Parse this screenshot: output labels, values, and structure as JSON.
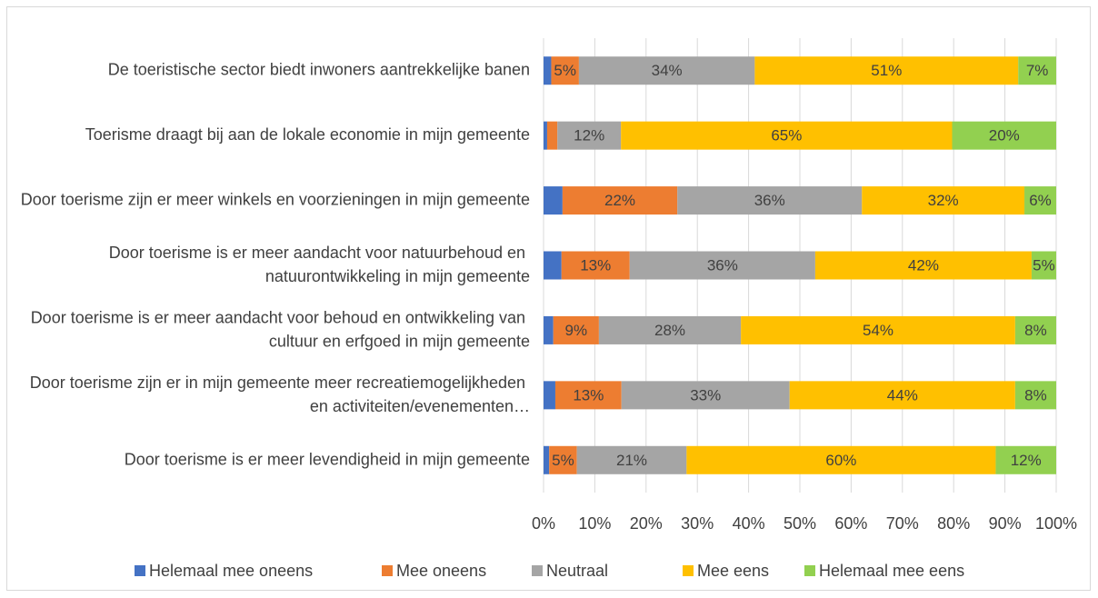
{
  "chart_data": {
    "type": "stacked_bar_horizontal",
    "categories": [
      "De toeristische sector biedt inwoners aantrekkelijke banen",
      "Toerisme draagt bij aan de lokale economie in mijn gemeente",
      "Door toerisme zijn er meer winkels en voorzieningen in mijn gemeente",
      "Door toerisme is er meer aandacht voor natuurbehoud en natuurontwikkeling in mijn gemeente",
      "Door toerisme is er meer aandacht voor behoud en ontwikkeling van cultuur en erfgoed in mijn gemeente",
      "Door toerisme zijn er in mijn gemeente meer recreatiemogelijkheden en activiteiten/evenementen…",
      "Door toerisme is er meer levendigheid in mijn gemeente"
    ],
    "series": [
      {
        "name": "Helemaal mee oneens",
        "color": "#4472c4",
        "values": [
          1.5,
          0.7,
          3.7,
          3.5,
          1.9,
          2.3,
          1.1
        ]
      },
      {
        "name": "Mee oneens",
        "color": "#ed7d31",
        "values": [
          5.4,
          2,
          22.4,
          13.3,
          8.9,
          12.9,
          5.4
        ],
        "value_labels": [
          "5%",
          null,
          "22%",
          "13%",
          "9%",
          "13%",
          "5%"
        ]
      },
      {
        "name": "Neutraal",
        "color": "#a5a5a5",
        "values": [
          34.3,
          12.4,
          36,
          36.2,
          27.7,
          32.8,
          21.4
        ],
        "value_labels": [
          "34%",
          "12%",
          "36%",
          "36%",
          "28%",
          "33%",
          "21%"
        ]
      },
      {
        "name": "Mee eens",
        "color": "#ffc000",
        "values": [
          51.4,
          64.6,
          31.7,
          42.2,
          53.5,
          44,
          60.3
        ],
        "value_labels": [
          "51%",
          "65%",
          "32%",
          "42%",
          "54%",
          "44%",
          "60%"
        ]
      },
      {
        "name": "Helemaal mee eens",
        "color": "#92d050",
        "values": [
          7.4,
          20.3,
          6.2,
          4.8,
          8,
          8,
          11.8
        ],
        "value_labels": [
          "7%",
          "20%",
          "6%",
          "5%",
          "8%",
          "8%",
          "12%"
        ]
      }
    ],
    "xlim": [
      0,
      100
    ],
    "xticks": [
      {
        "value": 0,
        "label": "0%"
      },
      {
        "value": 10,
        "label": "10%"
      },
      {
        "value": 20,
        "label": "20%"
      },
      {
        "value": 30,
        "label": "30%"
      },
      {
        "value": 40,
        "label": "40%"
      },
      {
        "value": 50,
        "label": "50%"
      },
      {
        "value": 60,
        "label": "60%"
      },
      {
        "value": 70,
        "label": "70%"
      },
      {
        "value": 80,
        "label": "80%"
      },
      {
        "value": 90,
        "label": "90%"
      },
      {
        "value": 100,
        "label": "100%"
      }
    ],
    "grid": true,
    "legend": "bottom"
  }
}
